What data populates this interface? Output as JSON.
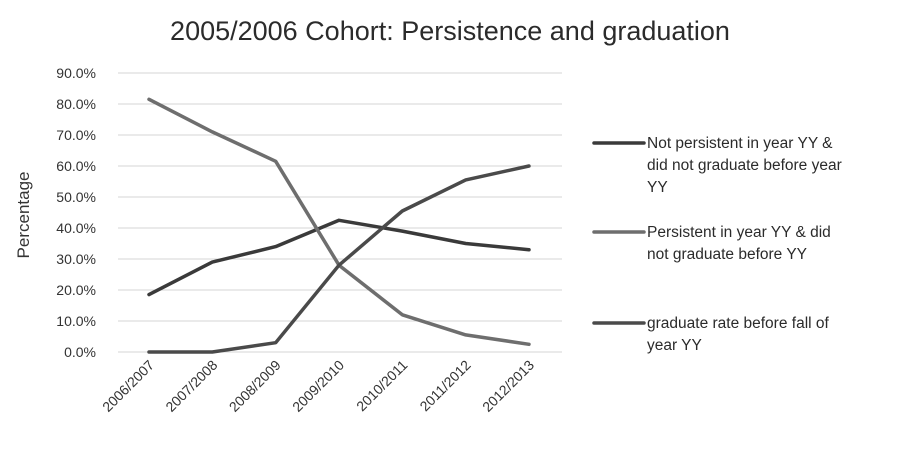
{
  "chart_data": {
    "type": "line",
    "title": "2005/2006 Cohort: Persistence and graduation",
    "xlabel": "",
    "ylabel": "Percentage",
    "ylim": [
      0,
      90
    ],
    "yticks": [
      "0.0%",
      "10.0%",
      "20.0%",
      "30.0%",
      "40.0%",
      "50.0%",
      "60.0%",
      "70.0%",
      "80.0%",
      "90.0%"
    ],
    "categories": [
      "2006/2007",
      "2007/2008",
      "2008/2009",
      "2009/2010",
      "2010/2011",
      "2011/2012",
      "2012/2013"
    ],
    "grid": true,
    "legend_position": "right",
    "series": [
      {
        "name": "Not persistent in year YY & did not graduate before year YY",
        "legend_lines": [
          "Not persistent in year YY &",
          "did not graduate before year",
          "YY"
        ],
        "values": [
          18.5,
          29.0,
          34.0,
          42.5,
          39.0,
          35.0,
          33.0
        ],
        "color": "#3a3a3a"
      },
      {
        "name": "Persistent in year YY & did not graduate before YY",
        "legend_lines": [
          "Persistent in year YY & did",
          "not graduate before YY"
        ],
        "values": [
          81.5,
          71.0,
          61.5,
          28.0,
          12.0,
          5.5,
          2.5
        ],
        "color": "#6e6e6e"
      },
      {
        "name": "graduate rate before fall of year YY",
        "legend_lines": [
          "graduate rate before fall of",
          "year YY"
        ],
        "values": [
          0.0,
          0.0,
          3.0,
          28.0,
          45.5,
          55.5,
          60.0
        ],
        "color": "#4a4a4a"
      }
    ]
  }
}
